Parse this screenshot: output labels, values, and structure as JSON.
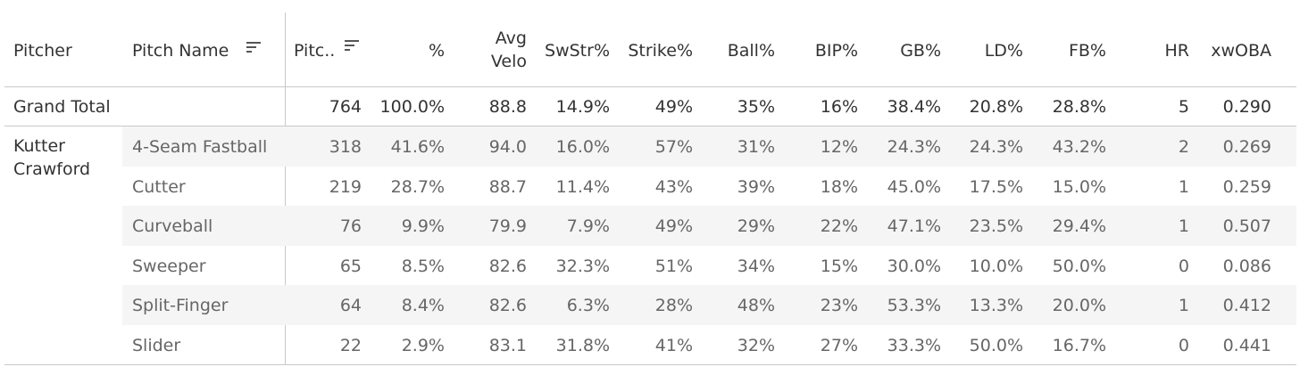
{
  "columns": {
    "pitcher": "Pitcher",
    "pitch_name": "Pitch Name",
    "pitches": "Pitc..",
    "pct": "%",
    "avg_velo_1": "Avg",
    "avg_velo_2": "Velo",
    "swstr": "SwStr%",
    "strike": "Strike%",
    "ball": "Ball%",
    "bip": "BIP%",
    "gb": "GB%",
    "ld": "LD%",
    "fb": "FB%",
    "hr": "HR",
    "xwoba": "xwOBA"
  },
  "grand_total": {
    "label": "Grand Total",
    "pitches": "764",
    "pct": "100.0%",
    "velo": "88.8",
    "swstr": "14.9%",
    "strike": "49%",
    "ball": "35%",
    "bip": "16%",
    "gb": "38.4%",
    "ld": "20.8%",
    "fb": "28.8%",
    "hr": "5",
    "xwoba": "0.290"
  },
  "pitcher": {
    "line1": "Kutter",
    "line2": "Crawford"
  },
  "rows": [
    {
      "name": "4-Seam Fastball",
      "pitches": "318",
      "pct": "41.6%",
      "velo": "94.0",
      "swstr": "16.0%",
      "strike": "57%",
      "ball": "31%",
      "bip": "12%",
      "gb": "24.3%",
      "ld": "24.3%",
      "fb": "43.2%",
      "hr": "2",
      "xwoba": "0.269"
    },
    {
      "name": "Cutter",
      "pitches": "219",
      "pct": "28.7%",
      "velo": "88.7",
      "swstr": "11.4%",
      "strike": "43%",
      "ball": "39%",
      "bip": "18%",
      "gb": "45.0%",
      "ld": "17.5%",
      "fb": "15.0%",
      "hr": "1",
      "xwoba": "0.259"
    },
    {
      "name": "Curveball",
      "pitches": "76",
      "pct": "9.9%",
      "velo": "79.9",
      "swstr": "7.9%",
      "strike": "49%",
      "ball": "29%",
      "bip": "22%",
      "gb": "47.1%",
      "ld": "23.5%",
      "fb": "29.4%",
      "hr": "1",
      "xwoba": "0.507"
    },
    {
      "name": "Sweeper",
      "pitches": "65",
      "pct": "8.5%",
      "velo": "82.6",
      "swstr": "32.3%",
      "strike": "51%",
      "ball": "34%",
      "bip": "15%",
      "gb": "30.0%",
      "ld": "10.0%",
      "fb": "50.0%",
      "hr": "0",
      "xwoba": "0.086"
    },
    {
      "name": "Split-Finger",
      "pitches": "64",
      "pct": "8.4%",
      "velo": "82.6",
      "swstr": "6.3%",
      "strike": "28%",
      "ball": "48%",
      "bip": "23%",
      "gb": "53.3%",
      "ld": "13.3%",
      "fb": "20.0%",
      "hr": "1",
      "xwoba": "0.412"
    },
    {
      "name": "Slider",
      "pitches": "22",
      "pct": "2.9%",
      "velo": "83.1",
      "swstr": "31.8%",
      "strike": "41%",
      "ball": "32%",
      "bip": "27%",
      "gb": "33.3%",
      "ld": "50.0%",
      "fb": "16.7%",
      "hr": "0",
      "xwoba": "0.441"
    }
  ]
}
